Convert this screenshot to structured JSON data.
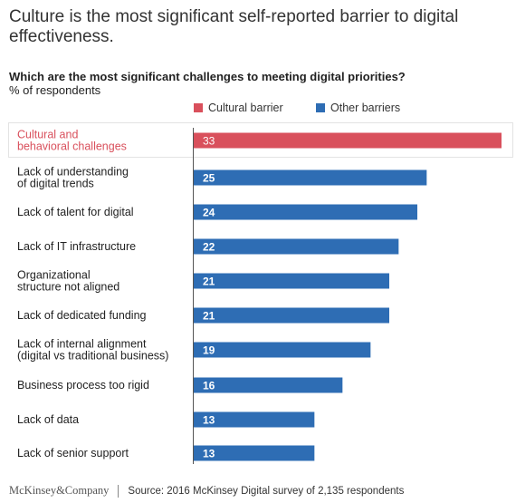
{
  "title": "Culture is the most significant self-reported barrier to digital effectiveness.",
  "subtitle": "Which are the most significant challenges to meeting digital priorities?",
  "unit": "% of respondents",
  "legend": [
    {
      "label": "Cultural barrier",
      "color": "#d9505c"
    },
    {
      "label": "Other barriers",
      "color": "#2e6db4"
    }
  ],
  "chart_data": {
    "type": "bar",
    "orientation": "horizontal",
    "xlim": [
      0,
      33
    ],
    "grid": false,
    "legend_position": "top-right",
    "highlight_row": 0,
    "categories": [
      [
        "Cultural and",
        "behavioral challenges"
      ],
      [
        "Lack of understanding",
        "of digital trends"
      ],
      [
        "Lack of talent for digital"
      ],
      [
        "Lack of IT infrastructure"
      ],
      [
        "Organizational",
        "structure not aligned"
      ],
      [
        "Lack of dedicated funding"
      ],
      [
        "Lack of internal alignment",
        "(digital vs traditional business)"
      ],
      [
        "Business process too rigid"
      ],
      [
        "Lack of data"
      ],
      [
        "Lack of senior support"
      ]
    ],
    "series": [
      {
        "name": "Cultural barrier",
        "color": "#d9505c",
        "values": [
          33,
          null,
          null,
          null,
          null,
          null,
          null,
          null,
          null,
          null
        ]
      },
      {
        "name": "Other barriers",
        "color": "#2e6db4",
        "values": [
          null,
          25,
          24,
          22,
          21,
          21,
          19,
          16,
          13,
          13
        ]
      }
    ],
    "values": [
      33,
      25,
      24,
      22,
      21,
      21,
      19,
      16,
      13,
      13
    ]
  },
  "footer": {
    "logo": "McKinsey&Company",
    "source": "Source: 2016 McKinsey Digital survey of 2,135 respondents"
  }
}
